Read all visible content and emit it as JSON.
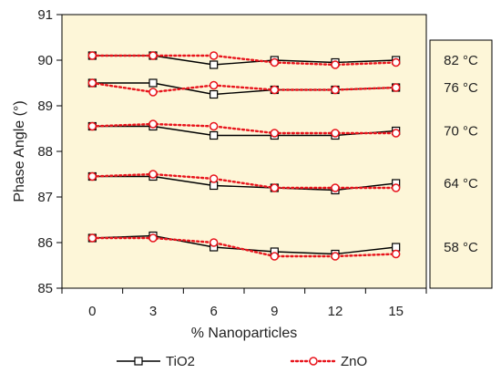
{
  "chart_data": {
    "type": "line",
    "xlabel": "% Nanoparticles",
    "ylabel": "Phase Angle (°)",
    "x": [
      0,
      3,
      6,
      9,
      12,
      15
    ],
    "ylim": [
      85,
      91
    ],
    "yticks": [
      85,
      86,
      87,
      88,
      89,
      90,
      91
    ],
    "grid": false,
    "legend_position": "bottom",
    "series": [
      {
        "name": "TiO2",
        "temperature": "82 °C",
        "values": [
          90.1,
          90.1,
          89.9,
          90.0,
          89.95,
          90.0
        ]
      },
      {
        "name": "ZnO",
        "temperature": "82 °C",
        "values": [
          90.1,
          90.1,
          90.1,
          89.95,
          89.9,
          89.95
        ]
      },
      {
        "name": "TiO2",
        "temperature": "76 °C",
        "values": [
          89.5,
          89.5,
          89.25,
          89.35,
          89.35,
          89.4
        ]
      },
      {
        "name": "ZnO",
        "temperature": "76 °C",
        "values": [
          89.5,
          89.3,
          89.45,
          89.35,
          89.35,
          89.4
        ]
      },
      {
        "name": "TiO2",
        "temperature": "70 °C",
        "values": [
          88.55,
          88.55,
          88.35,
          88.35,
          88.35,
          88.45
        ]
      },
      {
        "name": "ZnO",
        "temperature": "70 °C",
        "values": [
          88.55,
          88.6,
          88.55,
          88.4,
          88.4,
          88.4
        ]
      },
      {
        "name": "TiO2",
        "temperature": "64 °C",
        "values": [
          87.45,
          87.45,
          87.25,
          87.2,
          87.15,
          87.3
        ]
      },
      {
        "name": "ZnO",
        "temperature": "64 °C",
        "values": [
          87.45,
          87.5,
          87.4,
          87.2,
          87.2,
          87.2
        ]
      },
      {
        "name": "TiO2",
        "temperature": "58 °C",
        "values": [
          86.1,
          86.15,
          85.9,
          85.8,
          85.75,
          85.9
        ]
      },
      {
        "name": "ZnO",
        "temperature": "58 °C",
        "values": [
          86.1,
          86.1,
          86.0,
          85.7,
          85.7,
          85.75
        ]
      }
    ],
    "temperature_labels": [
      "82 °C",
      "76 °C",
      "70 °C",
      "64 °C",
      "58 °C"
    ],
    "legend": [
      {
        "name": "TiO2",
        "color": "#000000",
        "marker": "square",
        "line": "solid"
      },
      {
        "name": "ZnO",
        "color": "#e8141c",
        "marker": "circle",
        "line": "dotted"
      }
    ],
    "colors": {
      "background": "#fdf6d8",
      "tio2": "#000000",
      "zno": "#e8141c"
    }
  }
}
